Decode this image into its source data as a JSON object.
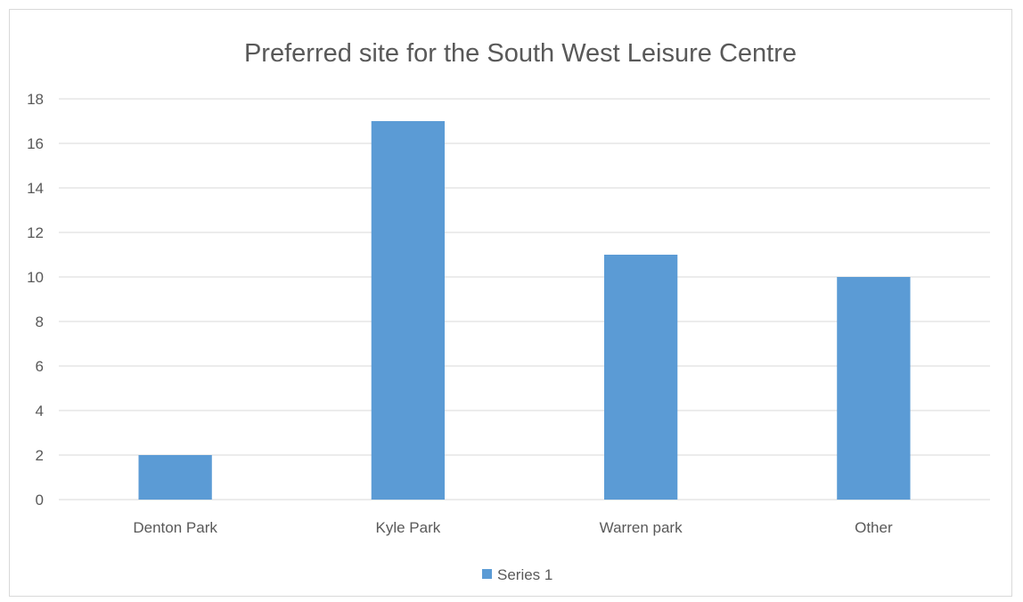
{
  "chart_data": {
    "type": "bar",
    "title": "Preferred site for the South West Leisure Centre",
    "xlabel": "",
    "ylabel": "",
    "categories": [
      "Denton Park",
      "Kyle Park",
      "Warren park",
      "Other"
    ],
    "series": [
      {
        "name": "Series 1",
        "values": [
          2,
          17,
          11,
          10
        ],
        "color": "#5b9bd5"
      }
    ],
    "ylim": [
      0,
      18
    ],
    "yticks": [
      "0",
      "2",
      "4",
      "6",
      "8",
      "10",
      "12",
      "14",
      "16",
      "18"
    ],
    "grid": true,
    "legend_position": "bottom"
  }
}
